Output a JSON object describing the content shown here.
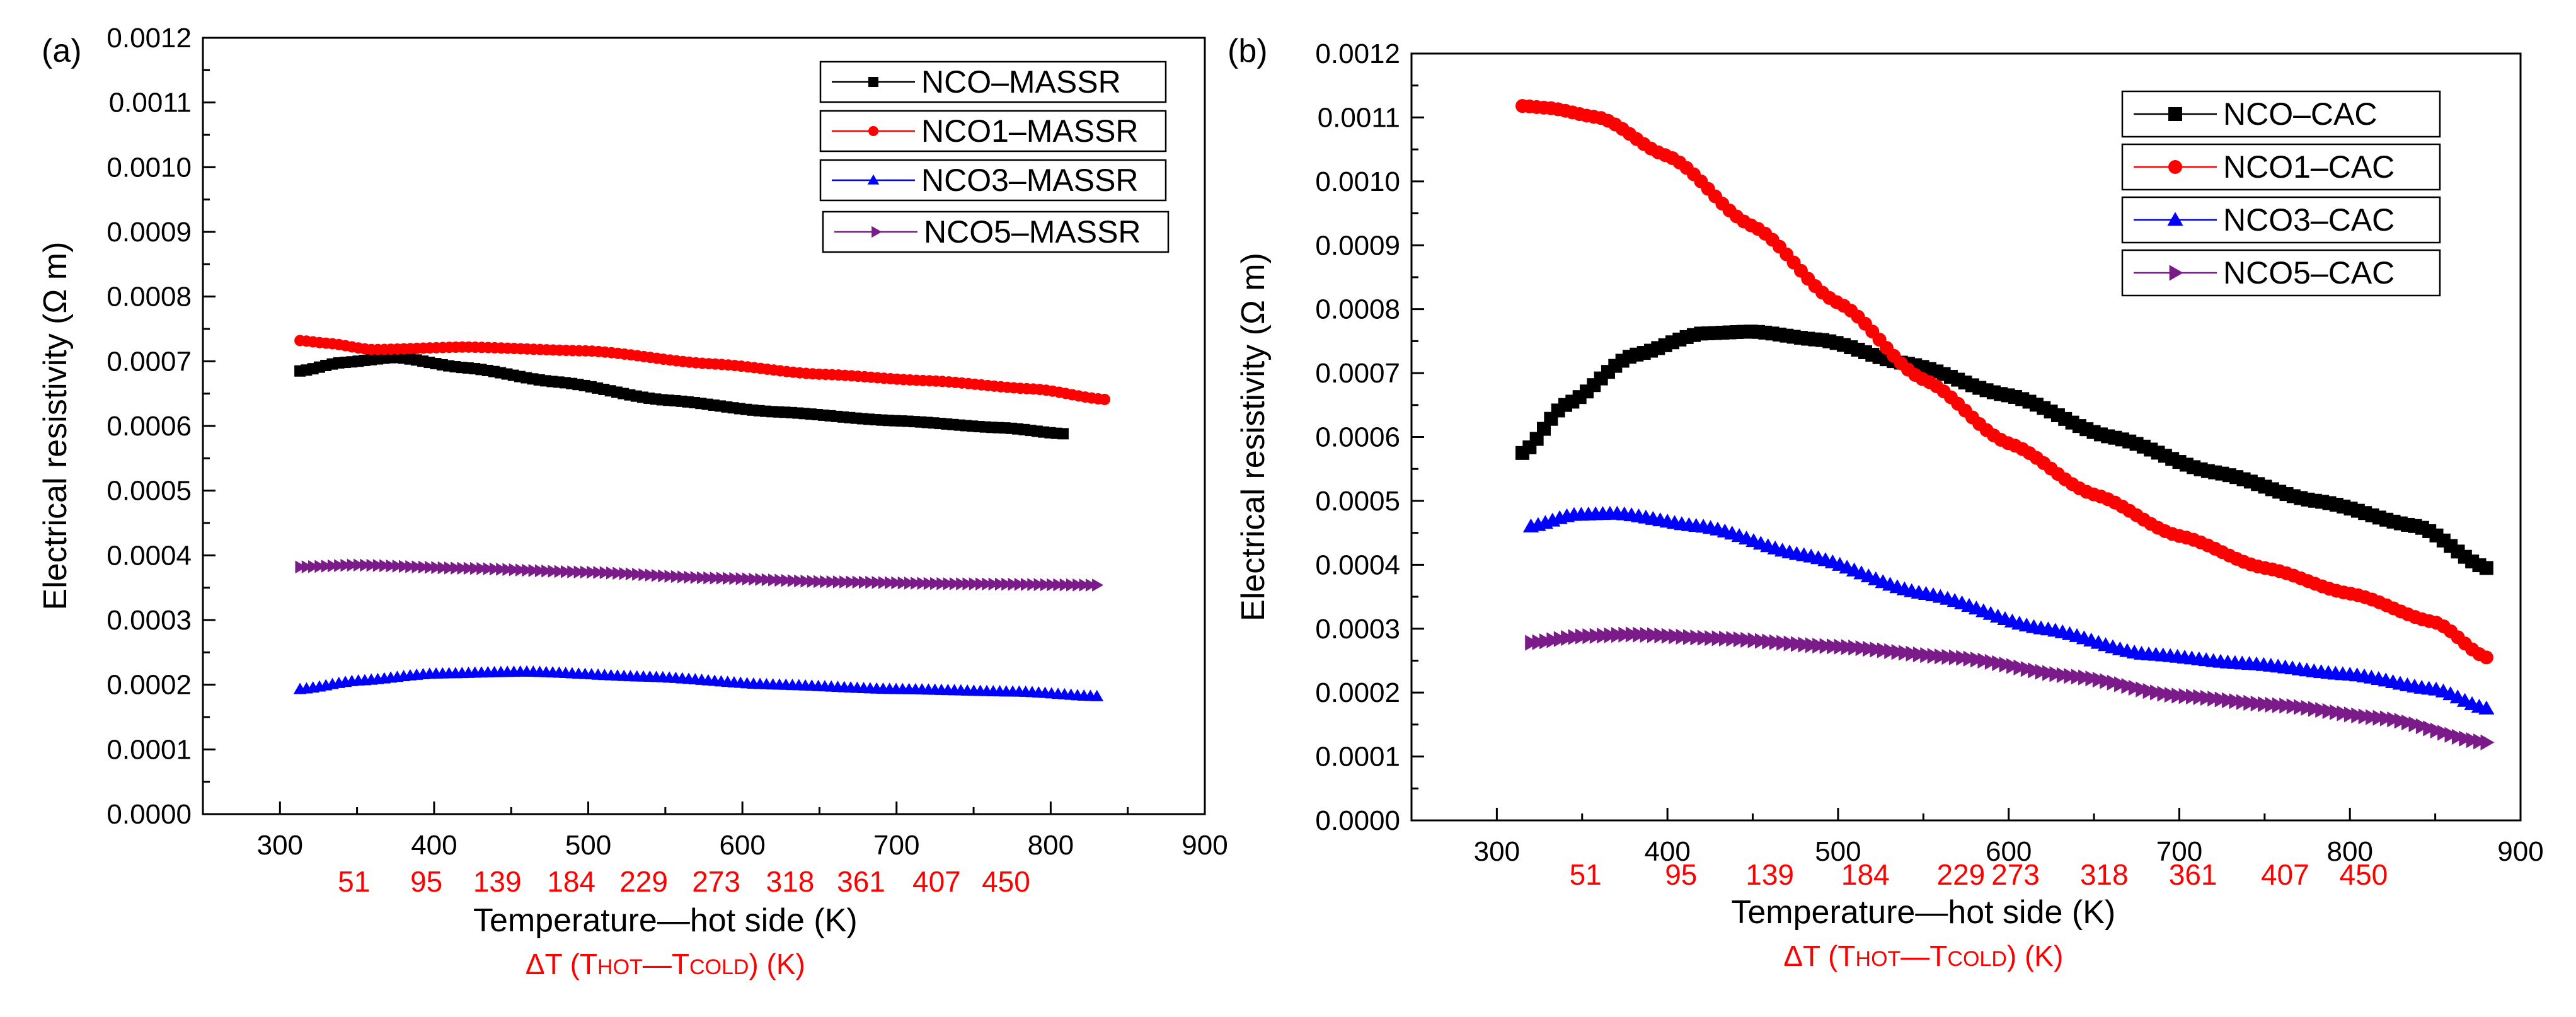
{
  "figure": {
    "accent_color": "#ff0000",
    "series_colors": {
      "black": "#000000",
      "red": "#ff0000",
      "blue": "#0000ff",
      "purple": "#7b1b8a"
    }
  },
  "chart_data": [
    {
      "panel_label": "(a)",
      "type": "scatter",
      "xlabel": "Temperature—hot side (K)",
      "ylabel": "Electrical resistivity (Ω m)",
      "secondary_xlabel": {
        "main": "ΔT (T",
        "hot": "HOT",
        "dash": "—T",
        "cold": "COLD",
        "unit": ") (K)"
      },
      "xlim": [
        250,
        900
      ],
      "ylim": [
        0,
        0.0012
      ],
      "x_ticks": [
        "300",
        "400",
        "500",
        "600",
        "700",
        "800",
        "900"
      ],
      "x_tick_values": [
        300,
        400,
        500,
        600,
        700,
        800,
        900
      ],
      "y_ticks": [
        "0.0000",
        "0.0001",
        "0.0002",
        "0.0003",
        "0.0004",
        "0.0005",
        "0.0006",
        "0.0007",
        "0.0008",
        "0.0009",
        "0.0010",
        "0.0011",
        "0.0012"
      ],
      "y_tick_values": [
        0,
        0.0001,
        0.0002,
        0.0003,
        0.0004,
        0.0005,
        0.0006,
        0.0007,
        0.0008,
        0.0009,
        0.001,
        0.0011,
        0.0012
      ],
      "delta_t_ticks": [
        "51",
        "95",
        "139",
        "184",
        "229",
        "273",
        "318",
        "361",
        "407",
        "450"
      ],
      "delta_t_positions": [
        348,
        395,
        441,
        489,
        536,
        583,
        631,
        677,
        726,
        771
      ],
      "legend_position": "top-right",
      "series": [
        {
          "name": "NCO–MASSR",
          "color": "#000000",
          "marker": "square",
          "x": [
            313,
            340,
            375,
            420,
            480,
            550,
            620,
            700,
            770,
            808
          ],
          "values": [
            0.000685,
            0.000698,
            0.000706,
            0.00069,
            0.000668,
            0.00064,
            0.000622,
            0.000608,
            0.000597,
            0.000588
          ]
        },
        {
          "name": "NCO1–MASSR",
          "color": "#ff0000",
          "marker": "circle",
          "x": [
            313,
            330,
            360,
            420,
            500,
            580,
            650,
            720,
            790,
            835
          ],
          "values": [
            0.000732,
            0.000728,
            0.000718,
            0.000722,
            0.000716,
            0.000696,
            0.00068,
            0.00067,
            0.000657,
            0.000641
          ]
        },
        {
          "name": "NCO3–MASSR",
          "color": "#0000ff",
          "marker": "triangle-up",
          "x": [
            313,
            350,
            400,
            460,
            540,
            620,
            700,
            780,
            830
          ],
          "values": [
            0.000193,
            0.000206,
            0.000217,
            0.00022,
            0.000212,
            0.0002,
            0.000193,
            0.000189,
            0.000182
          ]
        },
        {
          "name": "NCO5–MASSR",
          "color": "#7b1b8a",
          "marker": "triangle-right",
          "x": [
            313,
            350,
            420,
            500,
            580,
            660,
            740,
            830
          ],
          "values": [
            0.000382,
            0.000385,
            0.00038,
            0.000374,
            0.000365,
            0.000359,
            0.000356,
            0.000354
          ]
        }
      ]
    },
    {
      "panel_label": "(b)",
      "type": "scatter",
      "xlabel": "Temperature—hot side (K)",
      "ylabel": "Electrical resistivity (Ω m)",
      "secondary_xlabel": {
        "main": "ΔT (T",
        "hot": "HOT",
        "dash": "—T",
        "cold": "COLD",
        "unit": ") (K)"
      },
      "xlim": [
        250,
        900
      ],
      "ylim": [
        0,
        0.0012
      ],
      "x_ticks": [
        "300",
        "400",
        "500",
        "600",
        "700",
        "800",
        "900"
      ],
      "x_tick_values": [
        300,
        400,
        500,
        600,
        700,
        800,
        900
      ],
      "y_ticks": [
        "0.0000",
        "0.0001",
        "0.0002",
        "0.0003",
        "0.0004",
        "0.0005",
        "0.0006",
        "0.0007",
        "0.0008",
        "0.0009",
        "0.0010",
        "0.0011",
        "0.0012"
      ],
      "y_tick_values": [
        0,
        0.0001,
        0.0002,
        0.0003,
        0.0004,
        0.0005,
        0.0006,
        0.0007,
        0.0008,
        0.0009,
        0.001,
        0.0011,
        0.0012
      ],
      "delta_t_ticks": [
        "51",
        "95",
        "139",
        "184",
        "229",
        "273",
        "318",
        "361",
        "407",
        "450"
      ],
      "delta_t_positions": [
        352,
        408,
        460,
        516,
        572,
        604,
        656,
        708,
        762,
        808
      ],
      "legend_position": "top-right",
      "series": [
        {
          "name": "NCO–CAC",
          "color": "#000000",
          "marker": "square",
          "x": [
            315,
            340,
            380,
            420,
            450,
            490,
            540,
            600,
            660,
            720,
            780,
            840,
            880
          ],
          "values": [
            0.000575,
            0.00065,
            0.000728,
            0.000762,
            0.000765,
            0.000752,
            0.000715,
            0.000665,
            0.0006,
            0.000545,
            0.0005,
            0.00046,
            0.000395
          ]
        },
        {
          "name": "NCO1–CAC",
          "color": "#ff0000",
          "marker": "circle",
          "x": [
            315,
            330,
            360,
            400,
            450,
            500,
            550,
            600,
            650,
            700,
            750,
            800,
            850,
            880
          ],
          "values": [
            0.001118,
            0.001115,
            0.0011,
            0.00104,
            0.00093,
            0.00081,
            0.00069,
            0.00059,
            0.00051,
            0.000445,
            0.000395,
            0.000355,
            0.00031,
            0.000255
          ]
        },
        {
          "name": "NCO3–CAC",
          "color": "#0000ff",
          "marker": "triangle-up",
          "x": [
            320,
            345,
            370,
            420,
            480,
            550,
            620,
            680,
            740,
            800,
            850,
            880
          ],
          "values": [
            0.00046,
            0.000478,
            0.00048,
            0.00046,
            0.000415,
            0.000355,
            0.0003,
            0.00026,
            0.000245,
            0.000228,
            0.000205,
            0.000175
          ]
        },
        {
          "name": "NCO5–CAC",
          "color": "#7b1b8a",
          "marker": "triangle-right",
          "x": [
            320,
            350,
            380,
            430,
            500,
            570,
            640,
            700,
            760,
            820,
            880
          ],
          "values": [
            0.000278,
            0.000288,
            0.000291,
            0.000285,
            0.000272,
            0.000255,
            0.000225,
            0.000195,
            0.00018,
            0.00016,
            0.000122
          ]
        }
      ]
    }
  ]
}
